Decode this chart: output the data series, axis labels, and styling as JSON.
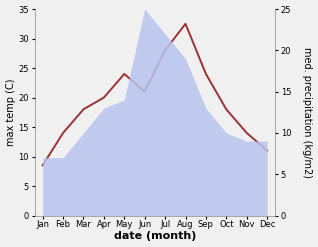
{
  "months": [
    "Jan",
    "Feb",
    "Mar",
    "Apr",
    "May",
    "Jun",
    "Jul",
    "Aug",
    "Sep",
    "Oct",
    "Nov",
    "Dec"
  ],
  "month_x": [
    0,
    1,
    2,
    3,
    4,
    5,
    6,
    7,
    8,
    9,
    10,
    11
  ],
  "temperature": [
    8.5,
    14.0,
    18.0,
    20.0,
    24.0,
    21.0,
    28.0,
    32.5,
    24.0,
    18.0,
    14.0,
    11.0
  ],
  "precipitation": [
    7.0,
    7.0,
    10.0,
    13.0,
    14.0,
    25.0,
    22.0,
    19.0,
    13.0,
    10.0,
    9.0,
    9.0
  ],
  "temp_color": "#993333",
  "precip_color": "#b8c4ee",
  "temp_ylim": [
    0,
    35
  ],
  "temp_yticks": [
    0,
    5,
    10,
    15,
    20,
    25,
    30,
    35
  ],
  "precip_ylim": [
    0,
    25
  ],
  "precip_yticks": [
    0,
    5,
    10,
    15,
    20,
    25
  ],
  "xlabel": "date (month)",
  "ylabel_left": "max temp (C)",
  "ylabel_right": "med. precipitation (kg/m2)",
  "background_color": "#f0f0f0",
  "title_fontsize": 7,
  "tick_fontsize": 6,
  "label_fontsize": 7
}
